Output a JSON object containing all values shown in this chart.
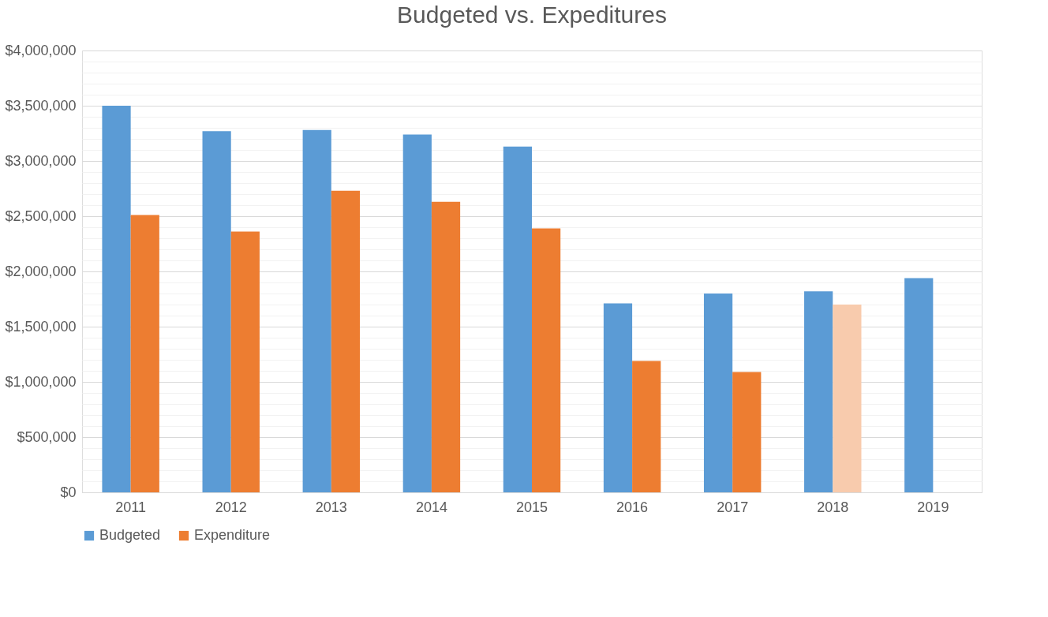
{
  "chart_data": {
    "type": "bar",
    "title": "Budgeted vs. Expeditures",
    "categories": [
      "2011",
      "2012",
      "2013",
      "2014",
      "2015",
      "2016",
      "2017",
      "2018",
      "2019"
    ],
    "series": [
      {
        "name": "Budgeted",
        "color": "#5b9bd5",
        "values": [
          3500000,
          3270000,
          3280000,
          3240000,
          3130000,
          1710000,
          1800000,
          1820000,
          1940000
        ]
      },
      {
        "name": "Expenditure",
        "color": "#ed7d31",
        "colors": [
          "#ed7d31",
          "#ed7d31",
          "#ed7d31",
          "#ed7d31",
          "#ed7d31",
          "#ed7d31",
          "#ed7d31",
          "#f8cbad",
          null
        ],
        "values": [
          2510000,
          2360000,
          2730000,
          2630000,
          2390000,
          1190000,
          1090000,
          1700000,
          null
        ]
      }
    ],
    "ylim": [
      0,
      4000000
    ],
    "yticks": [
      {
        "value": 0,
        "label": "$0"
      },
      {
        "value": 100000,
        "label": null
      },
      {
        "value": 200000,
        "label": null
      },
      {
        "value": 300000,
        "label": null
      },
      {
        "value": 400000,
        "label": null
      },
      {
        "value": 500000,
        "label": "$500,000"
      },
      {
        "value": 600000,
        "label": null
      },
      {
        "value": 700000,
        "label": null
      },
      {
        "value": 800000,
        "label": null
      },
      {
        "value": 900000,
        "label": null
      },
      {
        "value": 1000000,
        "label": "$1,000,000"
      },
      {
        "value": 1100000,
        "label": null
      },
      {
        "value": 1200000,
        "label": null
      },
      {
        "value": 1300000,
        "label": null
      },
      {
        "value": 1400000,
        "label": null
      },
      {
        "value": 1500000,
        "label": "$1,500,000"
      },
      {
        "value": 1600000,
        "label": null
      },
      {
        "value": 1700000,
        "label": null
      },
      {
        "value": 1800000,
        "label": null
      },
      {
        "value": 1900000,
        "label": null
      },
      {
        "value": 2000000,
        "label": "$2,000,000"
      },
      {
        "value": 2100000,
        "label": null
      },
      {
        "value": 2200000,
        "label": null
      },
      {
        "value": 2300000,
        "label": null
      },
      {
        "value": 2400000,
        "label": null
      },
      {
        "value": 2500000,
        "label": "$2,500,000"
      },
      {
        "value": 2600000,
        "label": null
      },
      {
        "value": 2700000,
        "label": null
      },
      {
        "value": 2800000,
        "label": null
      },
      {
        "value": 2900000,
        "label": null
      },
      {
        "value": 3000000,
        "label": "$3,000,000"
      },
      {
        "value": 3100000,
        "label": null
      },
      {
        "value": 3200000,
        "label": null
      },
      {
        "value": 3300000,
        "label": null
      },
      {
        "value": 3400000,
        "label": null
      },
      {
        "value": 3500000,
        "label": "$3,500,000"
      },
      {
        "value": 3600000,
        "label": null
      },
      {
        "value": 3700000,
        "label": null
      },
      {
        "value": 3800000,
        "label": null
      },
      {
        "value": 3900000,
        "label": null
      },
      {
        "value": 4000000,
        "label": "$4,000,000"
      }
    ],
    "grid": "y",
    "legend": "bottom"
  }
}
